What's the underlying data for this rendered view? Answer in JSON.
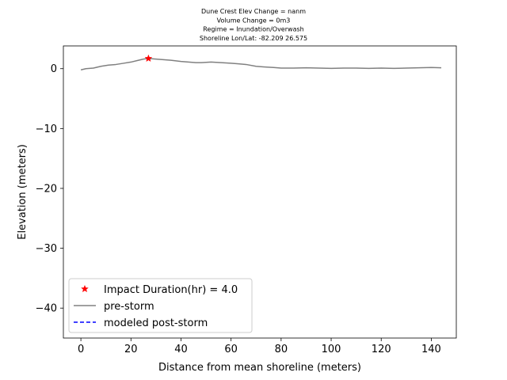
{
  "chart_data": {
    "type": "line",
    "title_lines": [
      "Dune Crest Elev Change = nanm",
      "Volume Change = 0m3",
      "Regime = Inundation/Overwash",
      " Shoreline Lon/Lat: -82.209 26.575"
    ],
    "xlabel": "Distance from mean shoreline (meters)",
    "ylabel": "Elevation (meters)",
    "xlim": [
      -7,
      150
    ],
    "ylim": [
      -45,
      3.8
    ],
    "xticks": [
      0,
      20,
      40,
      60,
      80,
      100,
      120,
      140
    ],
    "yticks": [
      0,
      -10,
      -20,
      -30,
      -40
    ],
    "grid": false,
    "legend_position": "lower-left",
    "series": [
      {
        "name": "pre-storm",
        "style": "solid",
        "color": "#808080",
        "x": [
          0,
          2,
          5,
          8,
          11,
          14,
          17,
          20,
          23,
          25,
          27,
          30,
          33,
          36,
          40,
          43,
          46,
          48,
          52,
          56,
          60,
          63,
          66,
          70,
          73,
          77,
          80,
          85,
          90,
          95,
          100,
          105,
          110,
          115,
          120,
          125,
          130,
          135,
          140,
          144
        ],
        "y": [
          -0.2,
          0.0,
          0.1,
          0.4,
          0.6,
          0.7,
          0.9,
          1.1,
          1.4,
          1.6,
          1.7,
          1.6,
          1.5,
          1.4,
          1.2,
          1.1,
          1.0,
          1.0,
          1.1,
          1.0,
          0.9,
          0.8,
          0.7,
          0.4,
          0.3,
          0.2,
          0.1,
          0.1,
          0.15,
          0.1,
          0.05,
          0.1,
          0.1,
          0.05,
          0.1,
          0.05,
          0.1,
          0.15,
          0.2,
          0.15
        ]
      },
      {
        "name": "modeled post-storm",
        "style": "dashed",
        "color": "#0000ff",
        "x": [],
        "y": []
      }
    ],
    "markers": [
      {
        "name": "Impact Duration(hr) = 4.0",
        "shape": "star",
        "color": "#ff0000",
        "x": 27,
        "y": 1.7
      }
    ]
  }
}
